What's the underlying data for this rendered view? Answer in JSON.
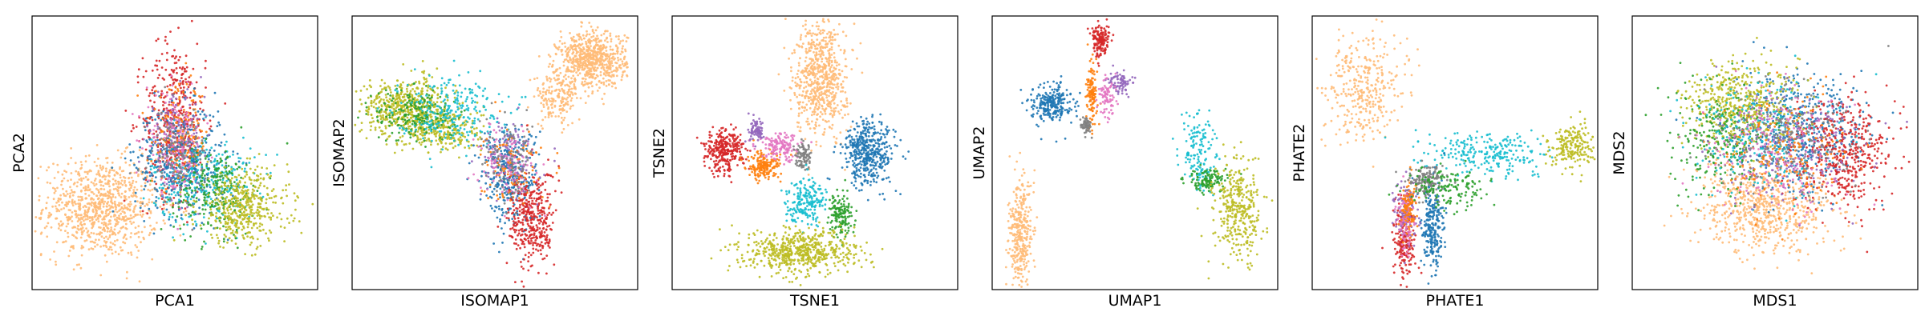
{
  "chart_data": [
    {
      "type": "scatter",
      "title": "",
      "xlabel": "PCA1",
      "ylabel": "PCA2",
      "ticks": false,
      "grid": false,
      "legend": "none",
      "series": [
        {
          "color": "#ffbb78",
          "clusters": [
            {
              "cx": 0.24,
              "cy": 0.3,
              "sx": 0.1,
              "sy": 0.09,
              "n": 900
            }
          ]
        },
        {
          "color": "#d62728",
          "clusters": [
            {
              "cx": 0.5,
              "cy": 0.62,
              "sx": 0.055,
              "sy": 0.14,
              "n": 450
            }
          ]
        },
        {
          "color": "#1f77b4",
          "clusters": [
            {
              "cx": 0.52,
              "cy": 0.47,
              "sx": 0.08,
              "sy": 0.1,
              "n": 420
            }
          ]
        },
        {
          "color": "#17becf",
          "clusters": [
            {
              "cx": 0.6,
              "cy": 0.4,
              "sx": 0.09,
              "sy": 0.08,
              "n": 300
            }
          ]
        },
        {
          "color": "#2ca02c",
          "clusters": [
            {
              "cx": 0.64,
              "cy": 0.36,
              "sx": 0.07,
              "sy": 0.08,
              "n": 250
            }
          ]
        },
        {
          "color": "#bcbd22",
          "clusters": [
            {
              "cx": 0.74,
              "cy": 0.3,
              "sx": 0.08,
              "sy": 0.07,
              "n": 450
            }
          ]
        },
        {
          "color": "#9467bd",
          "clusters": [
            {
              "cx": 0.5,
              "cy": 0.55,
              "sx": 0.05,
              "sy": 0.08,
              "n": 150
            }
          ]
        },
        {
          "color": "#ff7f0e",
          "clusters": [
            {
              "cx": 0.52,
              "cy": 0.56,
              "sx": 0.05,
              "sy": 0.09,
              "n": 150
            }
          ]
        },
        {
          "color": "#e377c2",
          "clusters": [
            {
              "cx": 0.5,
              "cy": 0.53,
              "sx": 0.05,
              "sy": 0.09,
              "n": 150
            }
          ]
        },
        {
          "color": "#7f7f7f",
          "clusters": [
            {
              "cx": 0.51,
              "cy": 0.5,
              "sx": 0.05,
              "sy": 0.08,
              "n": 120
            }
          ]
        }
      ]
    },
    {
      "type": "scatter",
      "title": "",
      "xlabel": "ISOMAP1",
      "ylabel": "ISOMAP2",
      "ticks": false,
      "grid": false,
      "legend": "none",
      "series": [
        {
          "color": "#ffbb78",
          "clusters": [
            {
              "cx": 0.84,
              "cy": 0.84,
              "sx": 0.06,
              "sy": 0.05,
              "n": 700
            },
            {
              "cx": 0.72,
              "cy": 0.7,
              "sx": 0.04,
              "sy": 0.05,
              "n": 180
            }
          ]
        },
        {
          "color": "#bcbd22",
          "clusters": [
            {
              "cx": 0.19,
              "cy": 0.67,
              "sx": 0.08,
              "sy": 0.05,
              "n": 500
            },
            {
              "cx": 0.32,
              "cy": 0.58,
              "sx": 0.07,
              "sy": 0.04,
              "n": 250
            }
          ]
        },
        {
          "color": "#2ca02c",
          "clusters": [
            {
              "cx": 0.22,
              "cy": 0.64,
              "sx": 0.07,
              "sy": 0.05,
              "n": 200
            }
          ]
        },
        {
          "color": "#17becf",
          "clusters": [
            {
              "cx": 0.34,
              "cy": 0.66,
              "sx": 0.09,
              "sy": 0.06,
              "n": 250
            }
          ]
        },
        {
          "color": "#1f77b4",
          "clusters": [
            {
              "cx": 0.55,
              "cy": 0.42,
              "sx": 0.05,
              "sy": 0.09,
              "n": 350
            }
          ]
        },
        {
          "color": "#d62728",
          "clusters": [
            {
              "cx": 0.63,
              "cy": 0.26,
              "sx": 0.04,
              "sy": 0.09,
              "n": 400
            }
          ]
        },
        {
          "color": "#9467bd",
          "clusters": [
            {
              "cx": 0.55,
              "cy": 0.48,
              "sx": 0.05,
              "sy": 0.07,
              "n": 120
            }
          ]
        },
        {
          "color": "#ff7f0e",
          "clusters": [
            {
              "cx": 0.56,
              "cy": 0.45,
              "sx": 0.05,
              "sy": 0.07,
              "n": 100
            }
          ]
        },
        {
          "color": "#e377c2",
          "clusters": [
            {
              "cx": 0.54,
              "cy": 0.47,
              "sx": 0.05,
              "sy": 0.07,
              "n": 100
            }
          ]
        },
        {
          "color": "#7f7f7f",
          "clusters": [
            {
              "cx": 0.55,
              "cy": 0.46,
              "sx": 0.05,
              "sy": 0.07,
              "n": 100
            }
          ]
        }
      ]
    },
    {
      "type": "scatter",
      "title": "",
      "xlabel": "TSNE1",
      "ylabel": "TSNE2",
      "ticks": false,
      "grid": false,
      "legend": "none",
      "series": [
        {
          "color": "#ffbb78",
          "clusters": [
            {
              "cx": 0.52,
              "cy": 0.78,
              "sx": 0.045,
              "sy": 0.11,
              "n": 700
            }
          ]
        },
        {
          "color": "#1f77b4",
          "clusters": [
            {
              "cx": 0.69,
              "cy": 0.5,
              "sx": 0.045,
              "sy": 0.06,
              "n": 450
            }
          ]
        },
        {
          "color": "#d62728",
          "clusters": [
            {
              "cx": 0.18,
              "cy": 0.51,
              "sx": 0.035,
              "sy": 0.04,
              "n": 300
            }
          ]
        },
        {
          "color": "#ff7f0e",
          "clusters": [
            {
              "cx": 0.32,
              "cy": 0.45,
              "sx": 0.03,
              "sy": 0.025,
              "n": 180
            }
          ]
        },
        {
          "color": "#e377c2",
          "clusters": [
            {
              "cx": 0.38,
              "cy": 0.52,
              "sx": 0.035,
              "sy": 0.025,
              "n": 150
            }
          ]
        },
        {
          "color": "#9467bd",
          "clusters": [
            {
              "cx": 0.3,
              "cy": 0.58,
              "sx": 0.015,
              "sy": 0.02,
              "n": 80
            }
          ]
        },
        {
          "color": "#7f7f7f",
          "clusters": [
            {
              "cx": 0.46,
              "cy": 0.48,
              "sx": 0.015,
              "sy": 0.025,
              "n": 90
            }
          ]
        },
        {
          "color": "#17becf",
          "clusters": [
            {
              "cx": 0.47,
              "cy": 0.33,
              "sx": 0.035,
              "sy": 0.04,
              "n": 200
            }
          ]
        },
        {
          "color": "#2ca02c",
          "clusters": [
            {
              "cx": 0.59,
              "cy": 0.27,
              "sx": 0.02,
              "sy": 0.04,
              "n": 150
            }
          ]
        },
        {
          "color": "#bcbd22",
          "clusters": [
            {
              "cx": 0.45,
              "cy": 0.14,
              "sx": 0.1,
              "sy": 0.04,
              "n": 600
            }
          ]
        }
      ]
    },
    {
      "type": "scatter",
      "title": "",
      "xlabel": "UMAP1",
      "ylabel": "UMAP2",
      "ticks": false,
      "grid": false,
      "legend": "none",
      "series": [
        {
          "color": "#d62728",
          "clusters": [
            {
              "cx": 0.38,
              "cy": 0.91,
              "sx": 0.015,
              "sy": 0.03,
              "n": 150
            }
          ]
        },
        {
          "color": "#ff7f0e",
          "clusters": [
            {
              "cx": 0.35,
              "cy": 0.72,
              "sx": 0.01,
              "sy": 0.06,
              "n": 120
            }
          ]
        },
        {
          "color": "#1f77b4",
          "clusters": [
            {
              "cx": 0.21,
              "cy": 0.68,
              "sx": 0.035,
              "sy": 0.035,
              "n": 250
            }
          ]
        },
        {
          "color": "#9467bd",
          "clusters": [
            {
              "cx": 0.45,
              "cy": 0.76,
              "sx": 0.02,
              "sy": 0.02,
              "n": 80
            }
          ]
        },
        {
          "color": "#e377c2",
          "clusters": [
            {
              "cx": 0.4,
              "cy": 0.7,
              "sx": 0.015,
              "sy": 0.04,
              "n": 80
            }
          ]
        },
        {
          "color": "#7f7f7f",
          "clusters": [
            {
              "cx": 0.33,
              "cy": 0.6,
              "sx": 0.012,
              "sy": 0.015,
              "n": 60
            }
          ]
        },
        {
          "color": "#ffbb78",
          "clusters": [
            {
              "cx": 0.1,
              "cy": 0.2,
              "sx": 0.02,
              "sy": 0.1,
              "n": 350
            }
          ]
        },
        {
          "color": "#17becf",
          "clusters": [
            {
              "cx": 0.72,
              "cy": 0.5,
              "sx": 0.03,
              "sy": 0.07,
              "n": 150
            }
          ]
        },
        {
          "color": "#2ca02c",
          "clusters": [
            {
              "cx": 0.76,
              "cy": 0.4,
              "sx": 0.04,
              "sy": 0.02,
              "n": 120
            }
          ]
        },
        {
          "color": "#bcbd22",
          "clusters": [
            {
              "cx": 0.86,
              "cy": 0.29,
              "sx": 0.04,
              "sy": 0.09,
              "n": 350
            }
          ]
        }
      ]
    },
    {
      "type": "scatter",
      "title": "",
      "xlabel": "PHATE1",
      "ylabel": "PHATE2",
      "ticks": false,
      "grid": false,
      "legend": "none",
      "series": [
        {
          "color": "#ffbb78",
          "clusters": [
            {
              "cx": 0.18,
              "cy": 0.74,
              "sx": 0.07,
              "sy": 0.1,
              "n": 350
            }
          ]
        },
        {
          "color": "#17becf",
          "clusters": [
            {
              "cx": 0.62,
              "cy": 0.5,
              "sx": 0.1,
              "sy": 0.04,
              "n": 250
            }
          ]
        },
        {
          "color": "#bcbd22",
          "clusters": [
            {
              "cx": 0.91,
              "cy": 0.52,
              "sx": 0.04,
              "sy": 0.04,
              "n": 200
            }
          ]
        },
        {
          "color": "#1f77b4",
          "clusters": [
            {
              "cx": 0.42,
              "cy": 0.22,
              "sx": 0.02,
              "sy": 0.09,
              "n": 250
            }
          ]
        },
        {
          "color": "#d62728",
          "clusters": [
            {
              "cx": 0.32,
              "cy": 0.18,
              "sx": 0.02,
              "sy": 0.08,
              "n": 200
            }
          ]
        },
        {
          "color": "#9467bd",
          "clusters": [
            {
              "cx": 0.33,
              "cy": 0.28,
              "sx": 0.02,
              "sy": 0.06,
              "n": 120
            }
          ]
        },
        {
          "color": "#e377c2",
          "clusters": [
            {
              "cx": 0.33,
              "cy": 0.24,
              "sx": 0.015,
              "sy": 0.06,
              "n": 100
            }
          ]
        },
        {
          "color": "#ff7f0e",
          "clusters": [
            {
              "cx": 0.34,
              "cy": 0.3,
              "sx": 0.015,
              "sy": 0.05,
              "n": 100
            }
          ]
        },
        {
          "color": "#7f7f7f",
          "clusters": [
            {
              "cx": 0.4,
              "cy": 0.4,
              "sx": 0.03,
              "sy": 0.03,
              "n": 150
            }
          ]
        },
        {
          "color": "#2ca02c",
          "clusters": [
            {
              "cx": 0.47,
              "cy": 0.37,
              "sx": 0.07,
              "sy": 0.04,
              "n": 150
            }
          ]
        }
      ]
    },
    {
      "type": "scatter",
      "title": "",
      "xlabel": "MDS1",
      "ylabel": "MDS2",
      "ticks": false,
      "grid": false,
      "legend": "none",
      "series": [
        {
          "color": "#ffbb78",
          "clusters": [
            {
              "cx": 0.47,
              "cy": 0.3,
              "sx": 0.12,
              "sy": 0.08,
              "n": 700
            }
          ]
        },
        {
          "color": "#1f77b4",
          "clusters": [
            {
              "cx": 0.58,
              "cy": 0.58,
              "sx": 0.12,
              "sy": 0.1,
              "n": 500
            }
          ]
        },
        {
          "color": "#d62728",
          "clusters": [
            {
              "cx": 0.74,
              "cy": 0.5,
              "sx": 0.08,
              "sy": 0.1,
              "n": 450
            }
          ]
        },
        {
          "color": "#bcbd22",
          "clusters": [
            {
              "cx": 0.38,
              "cy": 0.68,
              "sx": 0.1,
              "sy": 0.08,
              "n": 500
            }
          ]
        },
        {
          "color": "#2ca02c",
          "clusters": [
            {
              "cx": 0.32,
              "cy": 0.55,
              "sx": 0.09,
              "sy": 0.1,
              "n": 250
            }
          ]
        },
        {
          "color": "#17becf",
          "clusters": [
            {
              "cx": 0.45,
              "cy": 0.55,
              "sx": 0.12,
              "sy": 0.1,
              "n": 250
            }
          ]
        },
        {
          "color": "#9467bd",
          "clusters": [
            {
              "cx": 0.55,
              "cy": 0.52,
              "sx": 0.12,
              "sy": 0.11,
              "n": 200
            }
          ]
        },
        {
          "color": "#ff7f0e",
          "clusters": [
            {
              "cx": 0.52,
              "cy": 0.5,
              "sx": 0.12,
              "sy": 0.11,
              "n": 200
            }
          ]
        },
        {
          "color": "#e377c2",
          "clusters": [
            {
              "cx": 0.5,
              "cy": 0.52,
              "sx": 0.12,
              "sy": 0.11,
              "n": 200
            }
          ]
        },
        {
          "color": "#7f7f7f",
          "clusters": [
            {
              "cx": 0.52,
              "cy": 0.54,
              "sx": 0.12,
              "sy": 0.11,
              "n": 200
            }
          ]
        }
      ]
    }
  ]
}
